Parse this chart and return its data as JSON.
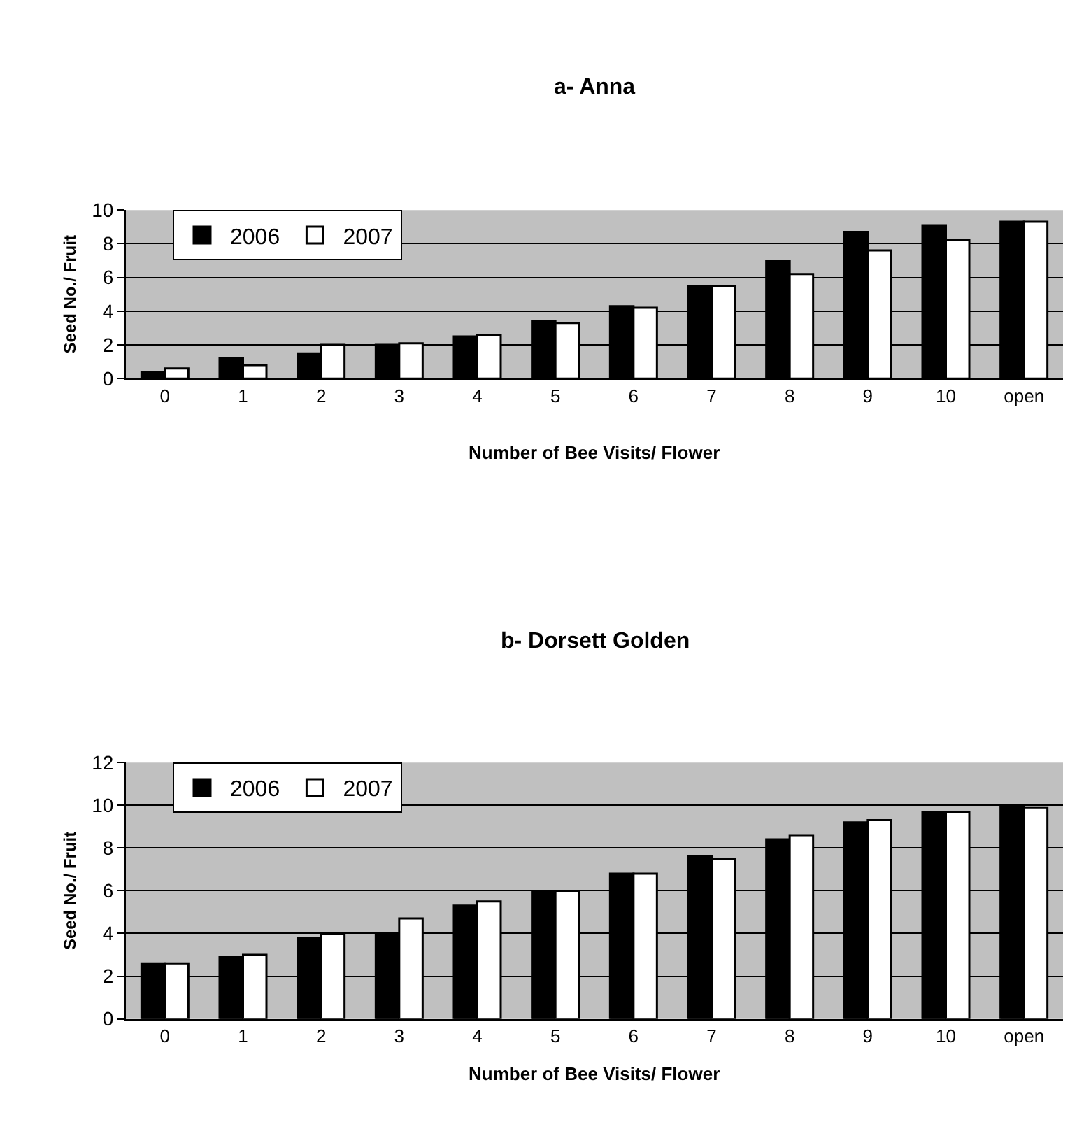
{
  "chart_data": [
    {
      "type": "bar",
      "title": "a- Anna",
      "xlabel": "Number of Bee Visits/ Flower",
      "ylabel": "Seed No./ Fruit",
      "categories": [
        "0",
        "1",
        "2",
        "3",
        "4",
        "5",
        "6",
        "7",
        "8",
        "9",
        "10",
        "open"
      ],
      "series": [
        {
          "name": "2006",
          "color": "#000000",
          "values": [
            0.4,
            1.2,
            1.5,
            2.0,
            2.5,
            3.4,
            4.3,
            5.5,
            7.0,
            8.7,
            9.1,
            9.3
          ]
        },
        {
          "name": "2007",
          "color": "#ffffff",
          "values": [
            0.6,
            0.8,
            2.0,
            2.1,
            2.6,
            3.3,
            4.2,
            5.5,
            6.2,
            7.6,
            8.2,
            9.3
          ]
        }
      ],
      "ylim": [
        0,
        10
      ],
      "yticks": [
        0,
        2,
        4,
        6,
        8,
        10
      ],
      "grid": "y",
      "legend": "top left"
    },
    {
      "type": "bar",
      "title": "b- Dorsett Golden",
      "xlabel": "Number of Bee Visits/ Flower",
      "ylabel": "Seed No./ Fruit",
      "categories": [
        "0",
        "1",
        "2",
        "3",
        "4",
        "5",
        "6",
        "7",
        "8",
        "9",
        "10",
        "open"
      ],
      "series": [
        {
          "name": "2006",
          "color": "#000000",
          "values": [
            2.6,
            2.9,
            3.8,
            4.0,
            5.3,
            6.0,
            6.8,
            7.6,
            8.4,
            9.2,
            9.7,
            10.0
          ]
        },
        {
          "name": "2007",
          "color": "#ffffff",
          "values": [
            2.6,
            3.0,
            4.0,
            4.7,
            5.5,
            6.0,
            6.8,
            7.5,
            8.6,
            9.3,
            9.7,
            9.9
          ]
        }
      ],
      "ylim": [
        0,
        12
      ],
      "yticks": [
        0,
        2,
        4,
        6,
        8,
        10,
        12
      ],
      "grid": "y",
      "legend": "top left"
    }
  ]
}
